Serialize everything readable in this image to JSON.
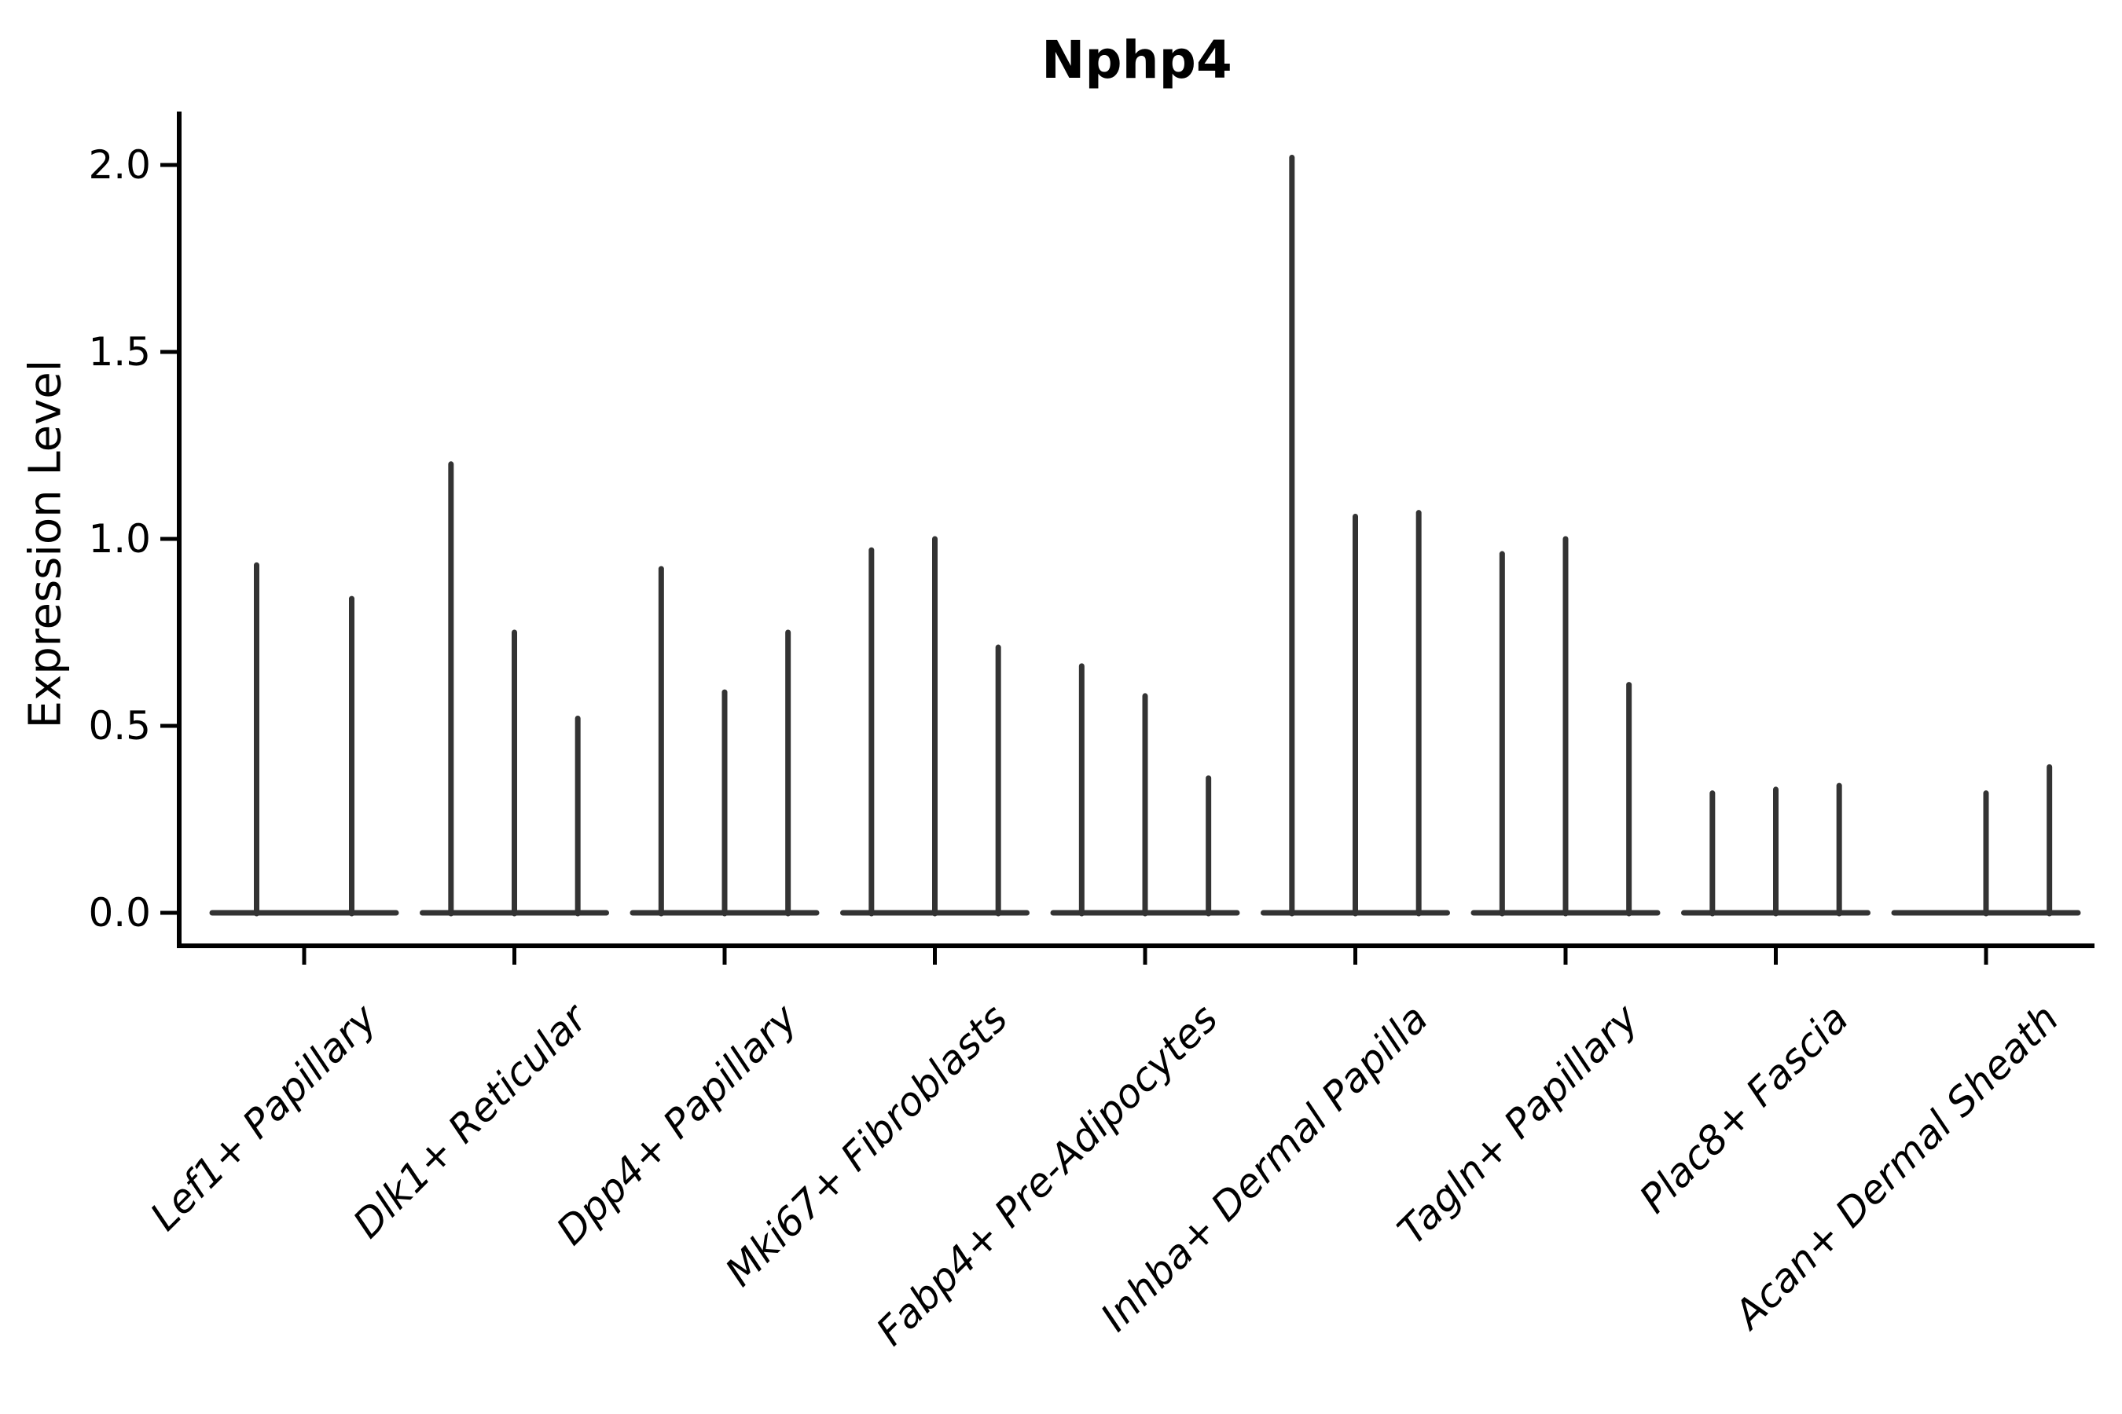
{
  "figure": {
    "background_color": "#ffffff",
    "axis_color": "#000000",
    "violin_line_color": "#333333"
  },
  "chart_data": {
    "type": "violin",
    "title": "Nphp4",
    "ylabel": "Expression Level",
    "xlabel": "",
    "ylim": [
      0.0,
      2.1
    ],
    "yticks": [
      0.0,
      0.5,
      1.0,
      1.5,
      2.0
    ],
    "ytick_labels": [
      "0.0",
      "0.5",
      "1.0",
      "1.5",
      "2.0"
    ],
    "grid": false,
    "legend": "none",
    "description": "Violin plot of Nphp4 expression; each cell-type category contains narrow needle-like violins (flat base at 0 with a thin spike to the max expression value).",
    "categories": [
      "Lef1+ Papillary",
      "Dlk1+ Reticular",
      "Dpp4+ Papillary",
      "Mki67+ Fibroblasts",
      "Fabp4+ Pre-Adipocytes",
      "Inhba+ Dermal Papilla",
      "Tagln+ Papillary",
      "Plac8+ Fascia",
      "Acan+ Dermal Sheath"
    ],
    "groups": [
      {
        "label": "Lef1+ Papillary",
        "violin_max_values": [
          0.93,
          0.84
        ]
      },
      {
        "label": "Dlk1+ Reticular",
        "violin_max_values": [
          1.2,
          0.75,
          0.52
        ]
      },
      {
        "label": "Dpp4+ Papillary",
        "violin_max_values": [
          0.92,
          0.59,
          0.75
        ]
      },
      {
        "label": "Mki67+ Fibroblasts",
        "violin_max_values": [
          0.97,
          1.0,
          0.71
        ]
      },
      {
        "label": "Fabp4+ Pre-Adipocytes",
        "violin_max_values": [
          0.66,
          0.58,
          0.36
        ]
      },
      {
        "label": "Inhba+ Dermal Papilla",
        "violin_max_values": [
          2.02,
          1.06,
          1.07
        ]
      },
      {
        "label": "Tagln+ Papillary",
        "violin_max_values": [
          0.96,
          1.0,
          0.61
        ]
      },
      {
        "label": "Plac8+ Fascia",
        "violin_max_values": [
          0.32,
          0.33,
          0.34
        ]
      },
      {
        "label": "Acan+ Dermal Sheath",
        "violin_max_values": [
          0.0,
          0.32,
          0.39
        ]
      }
    ]
  }
}
